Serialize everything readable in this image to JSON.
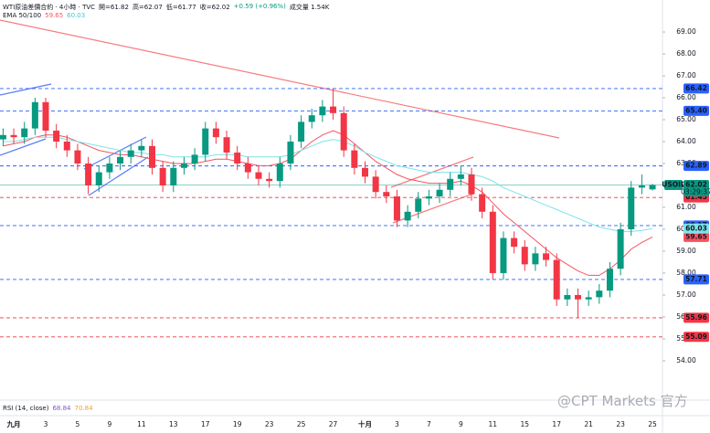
{
  "header": {
    "title": "WTI原油差價合約 · 4小時 · TVC",
    "ohlc": [
      "開=61.82",
      "高=62.07",
      "低=61.77",
      "收=62.02",
      "+0.59 (+0.96%)"
    ],
    "volume": "成交量 1.54K",
    "indicator": "EMA 50/100"
  },
  "rsi": {
    "label": "RSI (14, close)",
    "values": [
      68.84,
      70.84
    ]
  },
  "watermark": "@CPT Markets 官方",
  "chart_data": {
    "type": "candlestick",
    "symbol": "USOIL",
    "countdown": "03:29:37",
    "up_color": "#089981",
    "down_color": "#f23645",
    "categories": [
      null,
      "九月",
      null,
      null,
      "3",
      null,
      null,
      "5",
      null,
      null,
      "9",
      null,
      null,
      "11",
      null,
      null,
      "13",
      null,
      null,
      "17",
      null,
      null,
      "19",
      null,
      null,
      "23",
      null,
      null,
      "25",
      null,
      null,
      "27",
      null,
      null,
      "十月",
      null,
      null,
      "3",
      null,
      null,
      "7",
      null,
      null,
      "9",
      null,
      null,
      "11",
      null,
      null,
      "15",
      null,
      null,
      "17",
      null,
      null,
      "21",
      null,
      null,
      "23",
      null,
      null,
      "25"
    ],
    "open": [
      64.1,
      64.3,
      64.2,
      64.6,
      65.8,
      64.5,
      64.0,
      63.6,
      63.0,
      62.0,
      62.6,
      63.0,
      63.3,
      63.6,
      63.8,
      62.8,
      62.0,
      62.8,
      63.0,
      63.4,
      64.6,
      64.2,
      63.5,
      63.0,
      62.6,
      62.3,
      62.2,
      63.0,
      64.0,
      64.9,
      65.2,
      65.6,
      65.3,
      63.6,
      62.8,
      62.4,
      61.7,
      61.5,
      60.4,
      60.8,
      61.4,
      61.5,
      61.8,
      62.3,
      62.5,
      61.6,
      60.8,
      58.0,
      59.6,
      59.2,
      58.4,
      58.9,
      58.6,
      56.8,
      57.0,
      56.8,
      56.9,
      57.2,
      58.2,
      60.0,
      61.9,
      61.82
    ],
    "high": [
      64.6,
      64.6,
      64.9,
      66.0,
      66.0,
      64.8,
      64.3,
      63.9,
      63.3,
      62.9,
      63.3,
      63.6,
      63.9,
      64.1,
      64.1,
      63.1,
      63.1,
      63.3,
      63.7,
      64.9,
      64.9,
      64.5,
      63.8,
      63.3,
      62.9,
      62.6,
      63.3,
      64.3,
      65.2,
      65.5,
      65.9,
      66.42,
      65.6,
      63.9,
      63.1,
      62.7,
      62.0,
      61.8,
      61.1,
      61.7,
      61.8,
      62.1,
      62.6,
      62.89,
      62.8,
      61.9,
      61.1,
      59.9,
      59.9,
      59.5,
      59.2,
      59.2,
      58.9,
      57.3,
      57.3,
      57.2,
      57.5,
      58.5,
      60.3,
      62.2,
      62.5,
      62.07
    ],
    "low": [
      63.8,
      63.9,
      63.9,
      64.3,
      64.2,
      63.7,
      63.3,
      62.7,
      61.6,
      61.7,
      62.3,
      62.7,
      63.0,
      63.3,
      62.5,
      61.7,
      61.7,
      62.5,
      62.7,
      63.1,
      63.9,
      63.2,
      62.7,
      62.3,
      62.0,
      61.9,
      61.9,
      62.7,
      63.7,
      64.6,
      64.9,
      65.0,
      63.3,
      62.5,
      62.1,
      61.4,
      61.2,
      60.1,
      60.1,
      60.5,
      61.1,
      61.2,
      61.5,
      62.0,
      61.3,
      60.5,
      57.7,
      57.7,
      58.9,
      58.1,
      58.1,
      58.3,
      56.5,
      56.5,
      55.96,
      56.5,
      56.6,
      56.9,
      57.9,
      59.7,
      61.6,
      61.77
    ],
    "close": [
      64.3,
      64.2,
      64.6,
      65.8,
      64.5,
      64.0,
      63.6,
      63.0,
      62.0,
      62.6,
      63.0,
      63.3,
      63.6,
      63.8,
      62.8,
      62.0,
      62.8,
      63.0,
      63.4,
      64.6,
      64.2,
      63.5,
      63.0,
      62.6,
      62.3,
      62.2,
      63.0,
      64.0,
      64.9,
      65.2,
      65.6,
      65.3,
      63.6,
      62.8,
      62.4,
      61.7,
      61.5,
      60.4,
      60.8,
      61.4,
      61.5,
      61.8,
      62.3,
      62.5,
      61.6,
      60.8,
      58.0,
      59.6,
      59.2,
      58.4,
      58.9,
      58.6,
      56.8,
      57.0,
      56.8,
      56.9,
      57.2,
      58.2,
      60.0,
      61.9,
      62.0,
      62.02
    ],
    "series": [
      {
        "name": "EMA 50",
        "color": "#f7525f",
        "values": [
          63.8,
          63.9,
          64.0,
          64.2,
          64.3,
          64.3,
          64.2,
          64.0,
          63.8,
          63.6,
          63.5,
          63.4,
          63.4,
          63.3,
          63.2,
          63.1,
          63.0,
          63.0,
          63.0,
          63.1,
          63.2,
          63.2,
          63.1,
          63.0,
          62.9,
          62.9,
          63.0,
          63.2,
          63.6,
          64.0,
          64.3,
          64.5,
          64.3,
          63.9,
          63.5,
          63.1,
          62.8,
          62.5,
          62.3,
          62.2,
          62.1,
          62.1,
          62.1,
          62.2,
          62.0,
          61.7,
          61.2,
          60.7,
          60.3,
          59.9,
          59.5,
          59.1,
          58.7,
          58.4,
          58.1,
          57.9,
          57.9,
          58.2,
          58.6,
          59.1,
          59.4,
          59.65
        ]
      },
      {
        "name": "EMA 100",
        "color": "#7de3ea",
        "values": [
          64.0,
          64.0,
          64.1,
          64.2,
          64.2,
          64.2,
          64.1,
          64.0,
          63.9,
          63.8,
          63.7,
          63.6,
          63.5,
          63.5,
          63.4,
          63.4,
          63.3,
          63.3,
          63.3,
          63.3,
          63.4,
          63.4,
          63.4,
          63.3,
          63.3,
          63.3,
          63.3,
          63.4,
          63.6,
          63.8,
          64.0,
          64.1,
          64.0,
          63.8,
          63.5,
          63.3,
          63.1,
          62.9,
          62.8,
          62.7,
          62.6,
          62.6,
          62.6,
          62.6,
          62.5,
          62.4,
          62.2,
          61.9,
          61.7,
          61.5,
          61.3,
          61.1,
          60.9,
          60.7,
          60.5,
          60.3,
          60.1,
          60.0,
          59.9,
          59.9,
          59.95,
          60.03
        ]
      }
    ],
    "levels": [
      {
        "value": 66.42,
        "color": "#2962ff"
      },
      {
        "value": 65.4,
        "label": "65.40",
        "color": "#2962ff"
      },
      {
        "value": 62.89,
        "color": "#2962ff"
      },
      {
        "value": 61.45,
        "color": "#f23645"
      },
      {
        "value": 60.17,
        "color": "#2962ff"
      },
      {
        "value": 57.71,
        "color": "#2962ff"
      },
      {
        "value": 55.96,
        "color": "#f23645"
      },
      {
        "value": 55.09,
        "color": "#f23645"
      }
    ],
    "ylim": [
      52.33,
      70.46
    ],
    "yticks": [
      {
        "value": 54,
        "label": "54.00"
      },
      {
        "value": 55,
        "label": "55.00"
      },
      {
        "value": 56,
        "label": "56.00"
      },
      {
        "value": 57,
        "label": "57.00"
      },
      {
        "value": 58,
        "label": "58.00"
      },
      {
        "value": 59,
        "label": "59.00"
      },
      {
        "value": 60,
        "label": "60.00"
      },
      {
        "value": 61,
        "label": "61.00"
      },
      {
        "value": 62,
        "label": "62.00"
      },
      {
        "value": 63,
        "label": "63.00"
      },
      {
        "value": 64,
        "label": "64.00"
      },
      {
        "value": 65,
        "label": "65.00"
      },
      {
        "value": 66,
        "label": "66.00"
      },
      {
        "value": 67,
        "label": "67.00"
      },
      {
        "value": 68,
        "label": "68.00"
      },
      {
        "value": 69,
        "label": "69.00"
      }
    ]
  }
}
